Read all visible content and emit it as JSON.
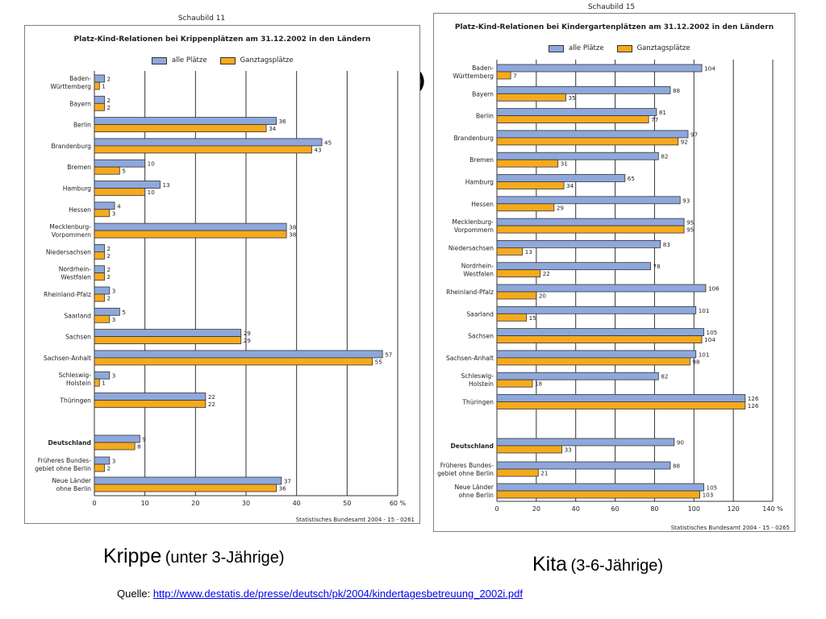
{
  "stray_glyph": ")",
  "colors": {
    "alle": "#8ea8dc",
    "ganztags": "#f5aa1e",
    "grid": "#333333",
    "bar_border": "#333333"
  },
  "charts": [
    {
      "panel_label": "Schaubild 11",
      "title": "Platz-Kind-Relationen bei Krippenplätzen am 31.12.2002 in den Ländern",
      "legend": [
        "alle Plätze",
        "Ganztagsplätze"
      ],
      "source": "Statistisches Bundesamt 2004 - 15 - 0261",
      "axis_unit": "%",
      "caption_main": "Krippe",
      "caption_sub": "(unter 3-Jährige)"
    },
    {
      "panel_label": "Schaubild 15",
      "title": "Platz-Kind-Relationen bei Kindergartenplätzen am 31.12.2002 in den Ländern",
      "legend": [
        "alle Plätze",
        "Ganztagsplätze"
      ],
      "source": "Statistisches Bundesamt 2004 - 15 - 0265",
      "axis_unit": "%",
      "caption_main": "Kita",
      "caption_sub": "(3-6-Jährige)"
    }
  ],
  "quelle": {
    "label": "Quelle: ",
    "url": "http://www.destatis.de/presse/deutsch/pk/2004/kindertagesbetreuung_2002i.pdf"
  },
  "chart_data": [
    {
      "type": "bar",
      "orientation": "horizontal",
      "title": "Platz-Kind-Relationen bei Krippenplätzen am 31.12.2002 in den Ländern",
      "xlim": [
        0,
        60
      ],
      "xticks": [
        0,
        10,
        20,
        30,
        40,
        50,
        60
      ],
      "categories": [
        [
          "Baden-",
          "Württemberg"
        ],
        [
          "Bayern"
        ],
        [
          "Berlin"
        ],
        [
          "Brandenburg"
        ],
        [
          "Bremen"
        ],
        [
          "Hamburg"
        ],
        [
          "Hessen"
        ],
        [
          "Mecklenburg-",
          "Vorpommern"
        ],
        [
          "Niedersachsen"
        ],
        [
          "Nordrhein-",
          "Westfalen"
        ],
        [
          "Rheinland-Pfalz"
        ],
        [
          "Saarland"
        ],
        [
          "Sachsen"
        ],
        [
          "Sachsen-Anhalt"
        ],
        [
          "Schleswig-",
          "Holstein"
        ],
        [
          "Thüringen"
        ],
        [
          "Deutschland"
        ],
        [
          "Früheres Bundes-",
          "gebiet ohne Berlin"
        ],
        [
          "Neue Länder",
          "ohne Berlin"
        ]
      ],
      "bold_categories": [
        "Deutschland"
      ],
      "series": [
        {
          "name": "alle Plätze",
          "values": [
            2,
            2,
            36,
            45,
            10,
            13,
            4,
            38,
            2,
            2,
            3,
            5,
            29,
            57,
            3,
            22,
            9,
            3,
            37
          ]
        },
        {
          "name": "Ganztagsplätze",
          "values": [
            1,
            2,
            34,
            43,
            5,
            10,
            3,
            38,
            2,
            2,
            2,
            3,
            29,
            55,
            1,
            22,
            8,
            2,
            36
          ]
        }
      ]
    },
    {
      "type": "bar",
      "orientation": "horizontal",
      "title": "Platz-Kind-Relationen bei Kindergartenplätzen am 31.12.2002 in den Ländern",
      "xlim": [
        0,
        140
      ],
      "xticks": [
        0,
        20,
        40,
        60,
        80,
        100,
        120,
        140
      ],
      "categories": [
        [
          "Baden-",
          "Württemberg"
        ],
        [
          "Bayern"
        ],
        [
          "Berlin"
        ],
        [
          "Brandenburg"
        ],
        [
          "Bremen"
        ],
        [
          "Hamburg"
        ],
        [
          "Hessen"
        ],
        [
          "Mecklenburg-",
          "Vorpommern"
        ],
        [
          "Niedersachsen"
        ],
        [
          "Nordrhein-",
          "Westfalen"
        ],
        [
          "Rheinland-Pfalz"
        ],
        [
          "Saarland"
        ],
        [
          "Sachsen"
        ],
        [
          "Sachsen-Anhalt"
        ],
        [
          "Schleswig-",
          "Holstein"
        ],
        [
          "Thüringen"
        ],
        [
          "Deutschland"
        ],
        [
          "Früheres Bundes-",
          "gebiet ohne Berlin"
        ],
        [
          "Neue Länder",
          "ohne Berlin"
        ]
      ],
      "bold_categories": [
        "Deutschland"
      ],
      "series": [
        {
          "name": "alle Plätze",
          "values": [
            104,
            88,
            81,
            97,
            82,
            65,
            93,
            95,
            83,
            78,
            106,
            101,
            105,
            101,
            82,
            126,
            90,
            88,
            105
          ]
        },
        {
          "name": "Ganztagsplätze",
          "values": [
            7,
            35,
            77,
            92,
            31,
            34,
            29,
            95,
            13,
            22,
            20,
            15,
            104,
            98,
            18,
            126,
            33,
            21,
            103
          ]
        }
      ]
    }
  ]
}
